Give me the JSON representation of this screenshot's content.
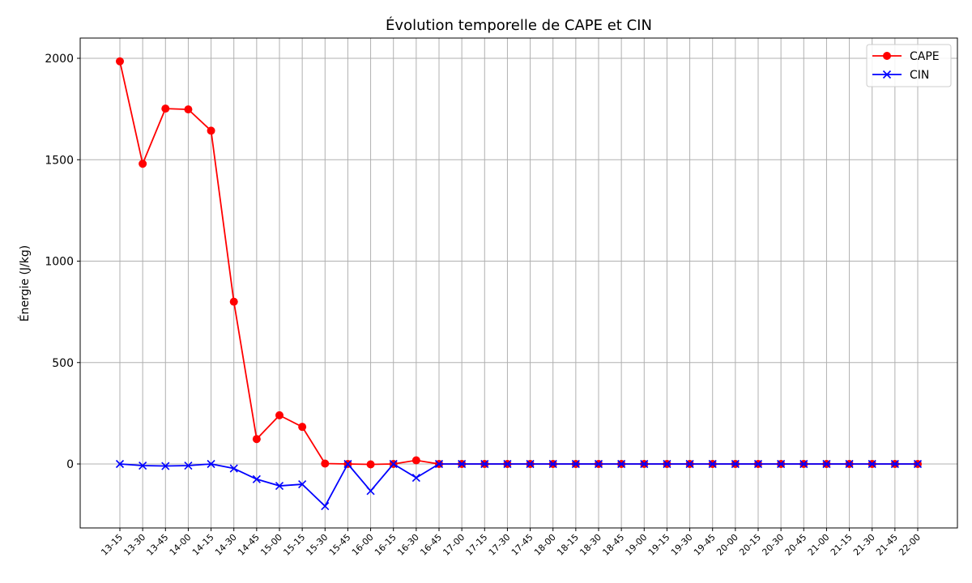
{
  "chart_data": {
    "type": "line",
    "title": "Évolution temporelle de CAPE et CIN",
    "xlabel": "",
    "ylabel": "Énergie (J/kg)",
    "categories": [
      "13-15",
      "13-30",
      "13-45",
      "14-00",
      "14-15",
      "14-30",
      "14-45",
      "15-00",
      "15-15",
      "15-30",
      "15-45",
      "16-00",
      "16-15",
      "16-30",
      "16-45",
      "17-00",
      "17-15",
      "17-30",
      "17-45",
      "18-00",
      "18-15",
      "18-30",
      "18-45",
      "19-00",
      "19-15",
      "19-30",
      "19-45",
      "20-00",
      "20-15",
      "20-30",
      "20-45",
      "21-00",
      "21-15",
      "21-30",
      "21-45",
      "22-00"
    ],
    "yticks": [
      0,
      500,
      1000,
      1500,
      2000
    ],
    "ylim": [
      -315,
      2100
    ],
    "grid": true,
    "legend_position": "top-right",
    "series": [
      {
        "name": "CAPE",
        "color": "#ff0000",
        "marker": "circle",
        "values": [
          1985,
          1480,
          1752,
          1748,
          1643,
          800,
          123,
          240,
          183,
          2,
          0,
          -2,
          0,
          18,
          0,
          0,
          0,
          0,
          0,
          0,
          0,
          0,
          0,
          0,
          0,
          0,
          0,
          0,
          0,
          0,
          0,
          0,
          0,
          0,
          0,
          0
        ]
      },
      {
        "name": "CIN",
        "color": "#0000ff",
        "marker": "x",
        "values": [
          0,
          -8,
          -10,
          -8,
          0,
          -22,
          -75,
          -108,
          -100,
          -208,
          0,
          -133,
          0,
          -68,
          0,
          0,
          0,
          0,
          0,
          0,
          0,
          0,
          0,
          0,
          0,
          0,
          0,
          0,
          0,
          0,
          0,
          0,
          0,
          0,
          0,
          0
        ]
      }
    ]
  }
}
